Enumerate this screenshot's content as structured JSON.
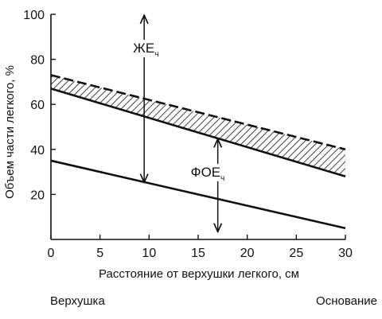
{
  "chart_data": {
    "type": "line",
    "xlabel": "Расстояние от верхушки легкого, см",
    "ylabel": "Объем части легкого, %",
    "xlim": [
      0,
      30
    ],
    "ylim": [
      0,
      100
    ],
    "x_ticks": [
      0,
      5,
      10,
      15,
      20,
      25,
      30
    ],
    "y_ticks": [
      20,
      40,
      60,
      80,
      100
    ],
    "grid": false,
    "series": [
      {
        "x": [
          0,
          30
        ],
        "values": [
          73,
          40
        ],
        "style": "dashed"
      },
      {
        "x": [
          0,
          30
        ],
        "values": [
          67,
          28
        ],
        "style": "solid"
      },
      {
        "x": [
          0,
          30
        ],
        "values": [
          35,
          5
        ],
        "style": "solid"
      }
    ],
    "shaded_band": {
      "between_series": [
        0,
        1
      ],
      "pattern": "diagonal-hatch"
    },
    "annotations": [
      {
        "main": "ЖЕ",
        "sub": "ч",
        "x": 9.5,
        "y_from": 100,
        "y_to": 25
      },
      {
        "main": "ФОЕ",
        "sub": "ч",
        "x": 17,
        "y_from": 45,
        "y_to": 3
      }
    ]
  },
  "footer": {
    "left": "Верхушка",
    "right": "Основание"
  }
}
